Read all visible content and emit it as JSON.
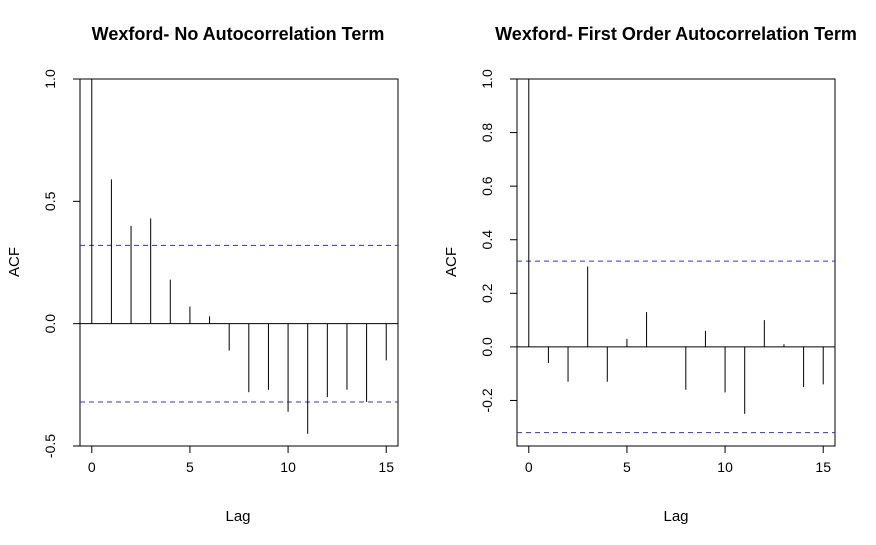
{
  "chart_data": [
    {
      "type": "bar",
      "subtype": "acf-stem",
      "title": "Wexford- No Autocorrelation Term",
      "xlabel": "Lag",
      "ylabel": "ACF",
      "xlim": [
        -0.6,
        15.6
      ],
      "ylim": [
        -0.5,
        1.0
      ],
      "xticks": [
        "0",
        "5",
        "10",
        "15"
      ],
      "yticks": [
        "-0.5",
        "0.0",
        "0.5",
        "1.0"
      ],
      "x": [
        0,
        1,
        2,
        3,
        4,
        5,
        6,
        7,
        8,
        9,
        10,
        11,
        12,
        13,
        14,
        15
      ],
      "values": [
        1.0,
        0.59,
        0.4,
        0.43,
        0.18,
        0.07,
        0.03,
        -0.11,
        -0.28,
        -0.27,
        -0.36,
        -0.45,
        -0.3,
        -0.27,
        -0.32,
        -0.15
      ],
      "confidence_bounds": [
        0.32,
        -0.32
      ],
      "bound_color": "#3333cc",
      "grid": false
    },
    {
      "type": "bar",
      "subtype": "acf-stem",
      "title": "Wexford- First Order Autocorrelation Term",
      "xlabel": "Lag",
      "ylabel": "ACF",
      "xlim": [
        -0.6,
        15.6
      ],
      "ylim": [
        -0.37,
        1.0
      ],
      "xticks": [
        "0",
        "5",
        "10",
        "15"
      ],
      "yticks": [
        "-0.2",
        "0.0",
        "0.2",
        "0.4",
        "0.6",
        "0.8",
        "1.0"
      ],
      "x": [
        0,
        1,
        2,
        3,
        4,
        5,
        6,
        7,
        8,
        9,
        10,
        11,
        12,
        13,
        14,
        15
      ],
      "values": [
        1.0,
        -0.06,
        -0.13,
        0.3,
        -0.13,
        0.03,
        0.13,
        0.0,
        -0.16,
        0.06,
        -0.17,
        -0.25,
        0.1,
        0.01,
        -0.15,
        -0.14
      ],
      "confidence_bounds": [
        0.32,
        -0.32
      ],
      "bound_color": "#3333cc",
      "grid": false
    }
  ]
}
